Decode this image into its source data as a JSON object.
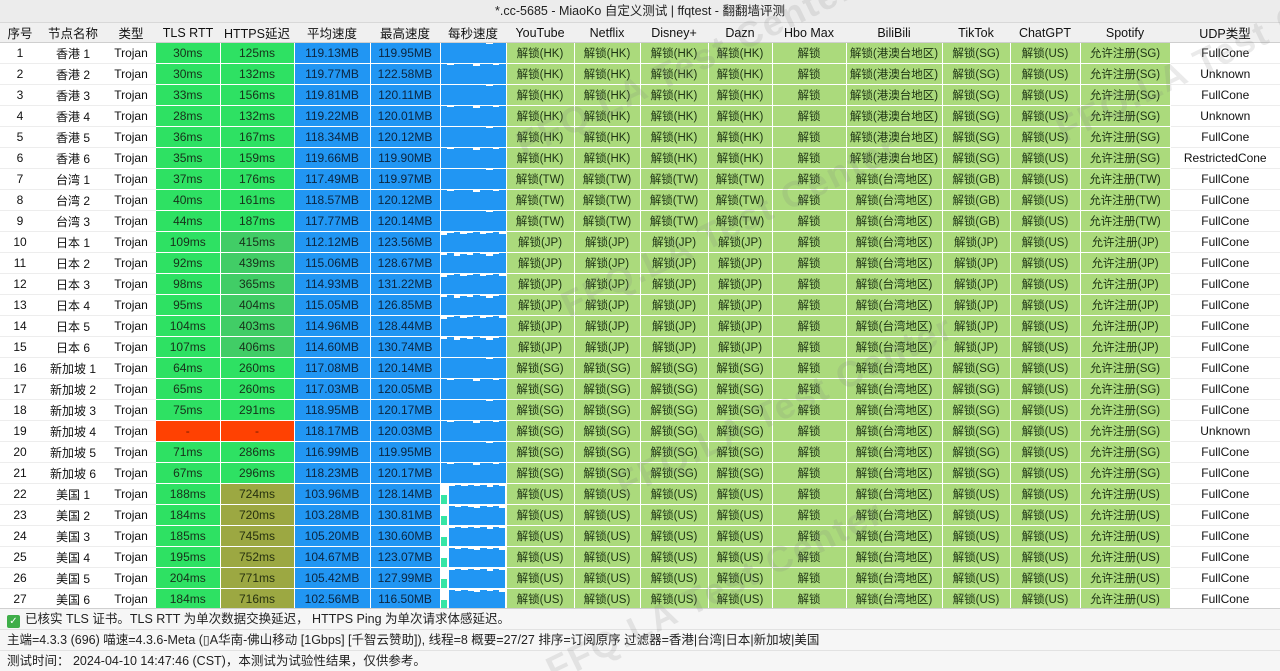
{
  "window": {
    "title": "*.cc-5685 - MiaoKo 自定义测试 | ffqtest - 翻翻墙评测"
  },
  "watermark": {
    "text": "FFQ.LA Test Center"
  },
  "colors": {
    "fast": "#2ee163",
    "mid": "#41cd66",
    "slow": "#9ca842",
    "fail": "#ff4102",
    "speed": "#2196f3",
    "unlock": "#abda7c",
    "teal": "#36e5a5"
  },
  "table": {
    "columns": [
      "序号",
      "节点名称",
      "类型",
      "TLS RTT",
      "HTTPS延迟",
      "平均速度",
      "最高速度",
      "每秒速度",
      "YouTube",
      "Netflix",
      "Disney+",
      "Dazn",
      "Hbo Max",
      "BiliBili",
      "TikTok",
      "ChatGPT",
      "Spotify",
      "UDP类型"
    ],
    "rows": [
      [
        "1",
        "香港 1",
        "Trojan",
        "30ms",
        "125ms",
        "119.13MB",
        "119.95MB",
        "a",
        "解锁(HK)",
        "解锁(HK)",
        "解锁(HK)",
        "解锁(HK)",
        "解锁",
        "解锁(港澳台地区)",
        "解锁(SG)",
        "解锁(US)",
        "允许注册(SG)",
        "FullCone"
      ],
      [
        "2",
        "香港 2",
        "Trojan",
        "30ms",
        "132ms",
        "119.77MB",
        "122.58MB",
        "b",
        "解锁(HK)",
        "解锁(HK)",
        "解锁(HK)",
        "解锁(HK)",
        "解锁",
        "解锁(港澳台地区)",
        "解锁(SG)",
        "解锁(US)",
        "允许注册(SG)",
        "Unknown"
      ],
      [
        "3",
        "香港 3",
        "Trojan",
        "33ms",
        "156ms",
        "119.81MB",
        "120.11MB",
        "a",
        "解锁(HK)",
        "解锁(HK)",
        "解锁(HK)",
        "解锁(HK)",
        "解锁",
        "解锁(港澳台地区)",
        "解锁(SG)",
        "解锁(US)",
        "允许注册(SG)",
        "FullCone"
      ],
      [
        "4",
        "香港 4",
        "Trojan",
        "28ms",
        "132ms",
        "119.22MB",
        "120.01MB",
        "b",
        "解锁(HK)",
        "解锁(HK)",
        "解锁(HK)",
        "解锁(HK)",
        "解锁",
        "解锁(港澳台地区)",
        "解锁(SG)",
        "解锁(US)",
        "允许注册(SG)",
        "Unknown"
      ],
      [
        "5",
        "香港 5",
        "Trojan",
        "36ms",
        "167ms",
        "118.34MB",
        "120.12MB",
        "a",
        "解锁(HK)",
        "解锁(HK)",
        "解锁(HK)",
        "解锁(HK)",
        "解锁",
        "解锁(港澳台地区)",
        "解锁(SG)",
        "解锁(US)",
        "允许注册(SG)",
        "FullCone"
      ],
      [
        "6",
        "香港 6",
        "Trojan",
        "35ms",
        "159ms",
        "119.66MB",
        "119.90MB",
        "b",
        "解锁(HK)",
        "解锁(HK)",
        "解锁(HK)",
        "解锁(HK)",
        "解锁",
        "解锁(港澳台地区)",
        "解锁(SG)",
        "解锁(US)",
        "允许注册(SG)",
        "RestrictedCone"
      ],
      [
        "7",
        "台湾 1",
        "Trojan",
        "37ms",
        "176ms",
        "117.49MB",
        "119.97MB",
        "a",
        "解锁(TW)",
        "解锁(TW)",
        "解锁(TW)",
        "解锁(TW)",
        "解锁",
        "解锁(台湾地区)",
        "解锁(GB)",
        "解锁(US)",
        "允许注册(TW)",
        "FullCone"
      ],
      [
        "8",
        "台湾 2",
        "Trojan",
        "40ms",
        "161ms",
        "118.57MB",
        "120.12MB",
        "b",
        "解锁(TW)",
        "解锁(TW)",
        "解锁(TW)",
        "解锁(TW)",
        "解锁",
        "解锁(台湾地区)",
        "解锁(GB)",
        "解锁(US)",
        "允许注册(TW)",
        "FullCone"
      ],
      [
        "9",
        "台湾 3",
        "Trojan",
        "44ms",
        "187ms",
        "117.77MB",
        "120.14MB",
        "a",
        "解锁(TW)",
        "解锁(TW)",
        "解锁(TW)",
        "解锁(TW)",
        "解锁",
        "解锁(台湾地区)",
        "解锁(GB)",
        "解锁(US)",
        "允许注册(TW)",
        "FullCone"
      ],
      [
        "10",
        "日本 1",
        "Trojan",
        "109ms",
        "415ms",
        "112.12MB",
        "123.56MB",
        "c",
        "解锁(JP)",
        "解锁(JP)",
        "解锁(JP)",
        "解锁(JP)",
        "解锁",
        "解锁(台湾地区)",
        "解锁(JP)",
        "解锁(US)",
        "允许注册(JP)",
        "FullCone"
      ],
      [
        "11",
        "日本 2",
        "Trojan",
        "92ms",
        "439ms",
        "115.06MB",
        "128.67MB",
        "d",
        "解锁(JP)",
        "解锁(JP)",
        "解锁(JP)",
        "解锁(JP)",
        "解锁",
        "解锁(台湾地区)",
        "解锁(JP)",
        "解锁(US)",
        "允许注册(JP)",
        "FullCone"
      ],
      [
        "12",
        "日本 3",
        "Trojan",
        "98ms",
        "365ms",
        "114.93MB",
        "131.22MB",
        "c",
        "解锁(JP)",
        "解锁(JP)",
        "解锁(JP)",
        "解锁(JP)",
        "解锁",
        "解锁(台湾地区)",
        "解锁(JP)",
        "解锁(US)",
        "允许注册(JP)",
        "FullCone"
      ],
      [
        "13",
        "日本 4",
        "Trojan",
        "95ms",
        "404ms",
        "115.05MB",
        "126.85MB",
        "d",
        "解锁(JP)",
        "解锁(JP)",
        "解锁(JP)",
        "解锁(JP)",
        "解锁",
        "解锁(台湾地区)",
        "解锁(JP)",
        "解锁(US)",
        "允许注册(JP)",
        "FullCone"
      ],
      [
        "14",
        "日本 5",
        "Trojan",
        "104ms",
        "403ms",
        "114.96MB",
        "128.44MB",
        "c",
        "解锁(JP)",
        "解锁(JP)",
        "解锁(JP)",
        "解锁(JP)",
        "解锁",
        "解锁(台湾地区)",
        "解锁(JP)",
        "解锁(US)",
        "允许注册(JP)",
        "FullCone"
      ],
      [
        "15",
        "日本 6",
        "Trojan",
        "107ms",
        "406ms",
        "114.60MB",
        "130.74MB",
        "d",
        "解锁(JP)",
        "解锁(JP)",
        "解锁(JP)",
        "解锁(JP)",
        "解锁",
        "解锁(台湾地区)",
        "解锁(JP)",
        "解锁(US)",
        "允许注册(JP)",
        "FullCone"
      ],
      [
        "16",
        "新加坡 1",
        "Trojan",
        "64ms",
        "260ms",
        "117.08MB",
        "120.14MB",
        "a",
        "解锁(SG)",
        "解锁(SG)",
        "解锁(SG)",
        "解锁(SG)",
        "解锁",
        "解锁(台湾地区)",
        "解锁(SG)",
        "解锁(US)",
        "允许注册(SG)",
        "FullCone"
      ],
      [
        "17",
        "新加坡 2",
        "Trojan",
        "65ms",
        "260ms",
        "117.03MB",
        "120.05MB",
        "b",
        "解锁(SG)",
        "解锁(SG)",
        "解锁(SG)",
        "解锁(SG)",
        "解锁",
        "解锁(台湾地区)",
        "解锁(SG)",
        "解锁(US)",
        "允许注册(SG)",
        "FullCone"
      ],
      [
        "18",
        "新加坡 3",
        "Trojan",
        "75ms",
        "291ms",
        "118.95MB",
        "120.17MB",
        "a",
        "解锁(SG)",
        "解锁(SG)",
        "解锁(SG)",
        "解锁(SG)",
        "解锁",
        "解锁(台湾地区)",
        "解锁(SG)",
        "解锁(US)",
        "允许注册(SG)",
        "FullCone"
      ],
      [
        "19",
        "新加坡 4",
        "Trojan",
        "-",
        "-",
        "118.17MB",
        "120.03MB",
        "b",
        "解锁(SG)",
        "解锁(SG)",
        "解锁(SG)",
        "解锁(SG)",
        "解锁",
        "解锁(台湾地区)",
        "解锁(SG)",
        "解锁(US)",
        "允许注册(SG)",
        "Unknown"
      ],
      [
        "20",
        "新加坡 5",
        "Trojan",
        "71ms",
        "286ms",
        "116.99MB",
        "119.95MB",
        "a",
        "解锁(SG)",
        "解锁(SG)",
        "解锁(SG)",
        "解锁(SG)",
        "解锁",
        "解锁(台湾地区)",
        "解锁(SG)",
        "解锁(US)",
        "允许注册(SG)",
        "FullCone"
      ],
      [
        "21",
        "新加坡 6",
        "Trojan",
        "67ms",
        "296ms",
        "118.23MB",
        "120.17MB",
        "b",
        "解锁(SG)",
        "解锁(SG)",
        "解锁(SG)",
        "解锁(SG)",
        "解锁",
        "解锁(台湾地区)",
        "解锁(SG)",
        "解锁(US)",
        "允许注册(SG)",
        "FullCone"
      ],
      [
        "22",
        "美国 1",
        "Trojan",
        "188ms",
        "724ms",
        "103.96MB",
        "128.14MB",
        "e",
        "解锁(US)",
        "解锁(US)",
        "解锁(US)",
        "解锁(US)",
        "解锁",
        "解锁(台湾地区)",
        "解锁(US)",
        "解锁(US)",
        "允许注册(US)",
        "FullCone"
      ],
      [
        "23",
        "美国 2",
        "Trojan",
        "184ms",
        "720ms",
        "103.28MB",
        "130.81MB",
        "f",
        "解锁(US)",
        "解锁(US)",
        "解锁(US)",
        "解锁(US)",
        "解锁",
        "解锁(台湾地区)",
        "解锁(US)",
        "解锁(US)",
        "允许注册(US)",
        "FullCone"
      ],
      [
        "24",
        "美国 3",
        "Trojan",
        "185ms",
        "745ms",
        "105.20MB",
        "130.60MB",
        "e",
        "解锁(US)",
        "解锁(US)",
        "解锁(US)",
        "解锁(US)",
        "解锁",
        "解锁(台湾地区)",
        "解锁(US)",
        "解锁(US)",
        "允许注册(US)",
        "FullCone"
      ],
      [
        "25",
        "美国 4",
        "Trojan",
        "195ms",
        "752ms",
        "104.67MB",
        "123.07MB",
        "f",
        "解锁(US)",
        "解锁(US)",
        "解锁(US)",
        "解锁(US)",
        "解锁",
        "解锁(台湾地区)",
        "解锁(US)",
        "解锁(US)",
        "允许注册(US)",
        "FullCone"
      ],
      [
        "26",
        "美国 5",
        "Trojan",
        "204ms",
        "771ms",
        "105.42MB",
        "127.99MB",
        "e",
        "解锁(US)",
        "解锁(US)",
        "解锁(US)",
        "解锁(US)",
        "解锁",
        "解锁(台湾地区)",
        "解锁(US)",
        "解锁(US)",
        "允许注册(US)",
        "FullCone"
      ],
      [
        "27",
        "美国 6",
        "Trojan",
        "184ms",
        "716ms",
        "102.56MB",
        "116.50MB",
        "f",
        "解锁(US)",
        "解锁(US)",
        "解锁(US)",
        "解锁(US)",
        "解锁",
        "解锁(台湾地区)",
        "解锁(US)",
        "解锁(US)",
        "允许注册(US)",
        "FullCone"
      ]
    ]
  },
  "spark_profiles": {
    "a": [
      100,
      100,
      100,
      98,
      100,
      100,
      100,
      95,
      100,
      100
    ],
    "b": [
      100,
      96,
      100,
      100,
      100,
      92,
      100,
      100,
      97,
      100
    ],
    "c": [
      86,
      95,
      100,
      90,
      97,
      100,
      88,
      96,
      100,
      92
    ],
    "d": [
      92,
      100,
      86,
      95,
      89,
      100,
      93,
      87,
      97,
      100
    ],
    "e": [
      45,
      90,
      96,
      88,
      95,
      90,
      97,
      86,
      93,
      90
    ],
    "f": [
      45,
      95,
      88,
      96,
      90,
      85,
      97,
      90,
      95,
      87
    ]
  },
  "footer": {
    "check_icon": "✓",
    "line1": "已核实 TLS 证书。TLS RTT 为单次数据交换延迟， HTTPS Ping 为单次请求体感延迟。",
    "line2": "主端=4.3.3 (696) 喵速=4.3.6-Meta (▯A华南-佛山移动 [1Gbps] [千智云赞助]), 线程=8 概要=27/27 排序=订阅原序 过滤器=香港|台湾|日本|新加坡|美国",
    "line3": "测试时间： 2024-04-10 14:47:46 (CST)，本测试为试验性结果，仅供参考。"
  }
}
